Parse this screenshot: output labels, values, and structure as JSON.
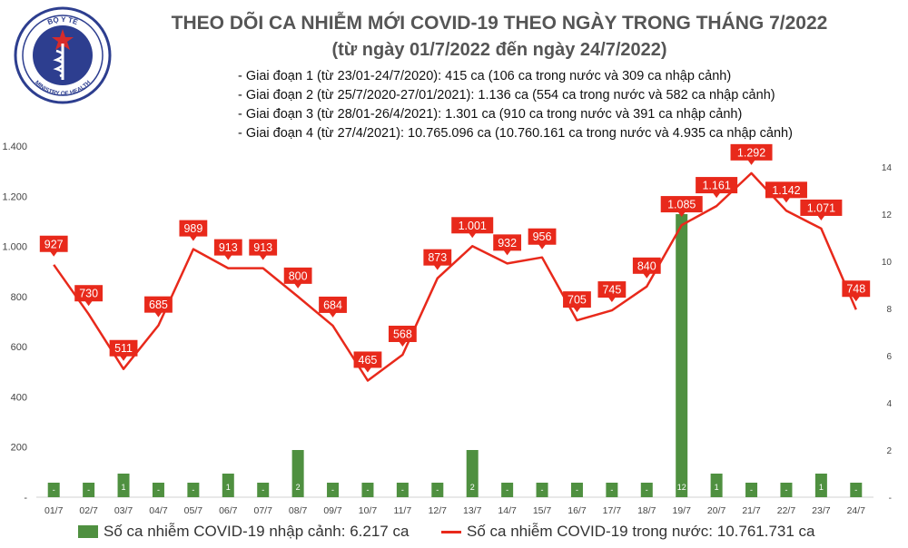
{
  "header": {
    "logo_text_top": "BỘ Y TẾ",
    "logo_text_bottom": "MINISTRY OF HEALTH",
    "title": "THEO DÕI CA NHIỄM MỚI COVID-19 THEO NGÀY TRONG THÁNG 7/2022",
    "subtitle": "(từ ngày 01/7/2022 đến ngày 24/7/2022)",
    "phases": [
      "- Giai đoạn 1 (từ 23/01-24/7/2020): 415 ca (106 ca trong nước và 309 ca nhập cảnh)",
      "- Giai đoạn 2 (từ 25/7/2020-27/01/2021): 1.136 ca (554 ca trong nước và 582 ca nhập cảnh)",
      "- Giai đoạn 3 (từ 28/01-26/4/2021): 1.301 ca (910 ca trong nước và 391 ca nhập cảnh)",
      "- Giai đoạn 4 (từ 27/4/2021): 10.765.096 ca (10.760.161 ca trong nước và 4.935 ca nhập cảnh)"
    ]
  },
  "colors": {
    "line": "#e8291b",
    "bar": "#4f9040",
    "title": "#555555"
  },
  "legend": {
    "bar_label": "Số ca nhiễm COVID-19 nhập cảnh: 6.217 ca",
    "line_label": "Số ca nhiễm COVID-19 trong nước: 10.761.731 ca"
  },
  "chart_data": {
    "type": "bar+line",
    "categories": [
      "01/7",
      "02/7",
      "03/7",
      "04/7",
      "05/7",
      "06/7",
      "07/7",
      "08/7",
      "09/7",
      "10/7",
      "11/7",
      "12/7",
      "13/7",
      "14/7",
      "15/7",
      "16/7",
      "17/7",
      "18/7",
      "19/7",
      "20/7",
      "21/7",
      "22/7",
      "23/7",
      "24/7"
    ],
    "series": [
      {
        "name": "Số ca nhiễm COVID-19 trong nước: 10.761.731 ca",
        "type": "line",
        "axis": "left",
        "values": [
          927,
          730,
          511,
          685,
          989,
          913,
          913,
          800,
          684,
          465,
          568,
          873,
          1001,
          932,
          956,
          705,
          745,
          840,
          1085,
          1161,
          1292,
          1142,
          1071,
          748
        ],
        "labels": [
          "927",
          "730",
          "511",
          "685",
          "989",
          "913",
          "913",
          "800",
          "684",
          "465",
          "568",
          "873",
          "1.001",
          "932",
          "956",
          "705",
          "745",
          "840",
          "1.085",
          "1.161",
          "1.292",
          "1.142",
          "1.071",
          "748"
        ]
      },
      {
        "name": "Số ca nhiễm COVID-19 nhập cảnh: 6.217 ca",
        "type": "bar",
        "axis": "right",
        "values": [
          0,
          0,
          1,
          0,
          0,
          1,
          0,
          2,
          0,
          0,
          0,
          0,
          2,
          0,
          0,
          0,
          0,
          0,
          12,
          1,
          0,
          0,
          1,
          0
        ],
        "labels": [
          "-",
          "-",
          "1",
          "-",
          "-",
          "1",
          "-",
          "2",
          "-",
          "-",
          "-",
          "-",
          "2",
          "-",
          "-",
          "-",
          "-",
          "-",
          "12",
          "1",
          "-",
          "-",
          "1",
          "-"
        ]
      }
    ],
    "y_left": {
      "range": [
        0,
        1400
      ],
      "ticks": [
        "-",
        "200",
        "400",
        "600",
        "800",
        "1.000",
        "1.200",
        "1.400"
      ],
      "tick_values": [
        0,
        200,
        400,
        600,
        800,
        1000,
        1200,
        1400
      ]
    },
    "y_right": {
      "range": [
        0,
        16
      ],
      "ticks": [
        "-",
        "2",
        "4",
        "6",
        "8",
        "10",
        "12",
        "14"
      ],
      "tick_values": [
        0,
        2,
        4,
        6,
        8,
        10,
        12,
        14
      ]
    },
    "grid": false,
    "legend_position": "bottom"
  }
}
